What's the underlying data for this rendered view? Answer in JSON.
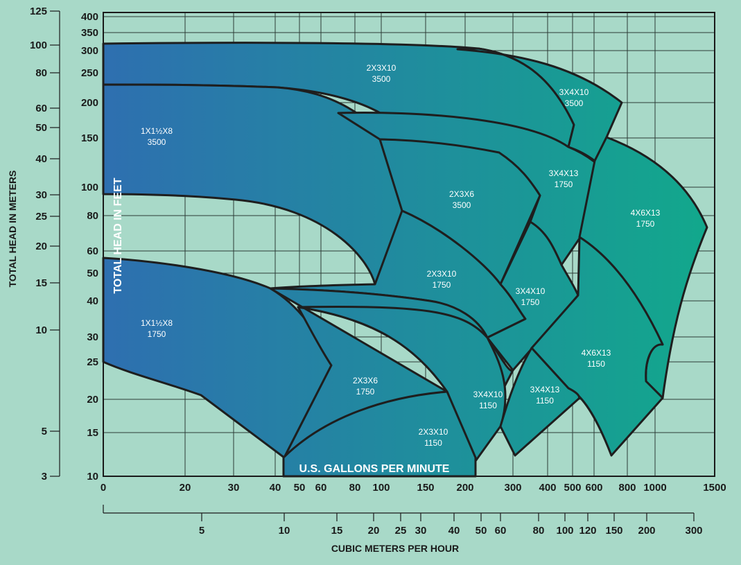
{
  "chart_data": {
    "type": "area",
    "title": "",
    "colors": {
      "background": "#a8d9c8",
      "fill_start": "#2e6fb0",
      "fill_end": "#12a88c",
      "outline": "#1e1e1e"
    },
    "axes": {
      "x_gpm": {
        "label": "U.S. GALLONS PER MINUTE",
        "ticks": [
          "0",
          "20",
          "30",
          "40",
          "50",
          "60",
          "80",
          "100",
          "150",
          "200",
          "300",
          "400",
          "500",
          "600",
          "800",
          "1000",
          "1500"
        ]
      },
      "x_m3h": {
        "label": "CUBIC METERS PER HOUR",
        "ticks": [
          "5",
          "10",
          "15",
          "20",
          "25",
          "30",
          "40",
          "50",
          "60",
          "80",
          "100",
          "120",
          "150",
          "200",
          "300"
        ]
      },
      "y_feet": {
        "label": "TOTAL HEAD IN FEET",
        "ticks": [
          "400",
          "350",
          "300",
          "250",
          "200",
          "150",
          "100",
          "80",
          "60",
          "50",
          "40",
          "30",
          "25",
          "20",
          "15",
          "10"
        ]
      },
      "y_meters": {
        "label": "TOTAL HEAD IN METERS",
        "ticks": [
          "125",
          "100",
          "80",
          "60",
          "50",
          "40",
          "30",
          "25",
          "20",
          "15",
          "10",
          "5",
          "3"
        ]
      }
    },
    "series": [
      {
        "name": "2X3X10",
        "speed": "3500"
      },
      {
        "name": "3X4X10",
        "speed": "3500"
      },
      {
        "name": "1X1½X8",
        "speed": "3500"
      },
      {
        "name": "3X4X13",
        "speed": "1750"
      },
      {
        "name": "2X3X6",
        "speed": "3500"
      },
      {
        "name": "4X6X13",
        "speed": "1750"
      },
      {
        "name": "2X3X10",
        "speed": "1750"
      },
      {
        "name": "3X4X10",
        "speed": "1750"
      },
      {
        "name": "1X1½X8",
        "speed": "1750"
      },
      {
        "name": "4X6X13",
        "speed": "1150"
      },
      {
        "name": "2X3X6",
        "speed": "1750"
      },
      {
        "name": "3X4X10",
        "speed": "1150"
      },
      {
        "name": "3X4X13",
        "speed": "1150"
      },
      {
        "name": "2X3X10",
        "speed": "1150"
      }
    ]
  }
}
